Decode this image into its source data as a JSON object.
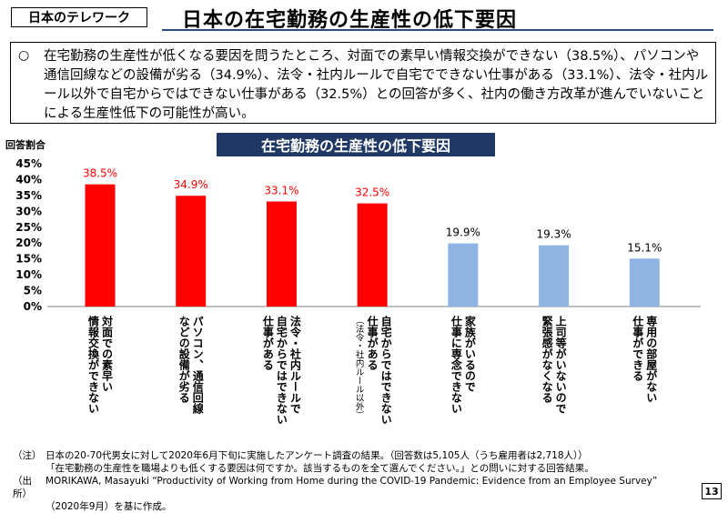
{
  "header": {
    "tag": "日本のテレワーク",
    "title": "日本の在宅勤務の生産性の低下要因"
  },
  "summary": {
    "bullet": "○",
    "text": "在宅勤務の生産性が低くなる要因を問うたところ、対面での素早い情報交換ができない（38.5%）、パソコンや通信回線などの設備が劣る（34.9%）、法令・社内ルールで自宅でできない仕事がある（33.1%）、法令・社内ルール以外で自宅からではできない仕事がある（32.5%）との回答が多く、社内の働き方改革が進んでいないことによる生産性低下の可能性が高い。"
  },
  "chart_data": {
    "type": "bar",
    "title": "在宅勤務の生産性の低下要因",
    "ylabel": "回答割合",
    "ylim": [
      0,
      45
    ],
    "yticks": [
      "0%",
      "5%",
      "10%",
      "15%",
      "20%",
      "25%",
      "30%",
      "35%",
      "40%",
      "45%"
    ],
    "grid": false,
    "values": [
      38.5,
      34.9,
      33.1,
      32.5,
      19.9,
      19.3,
      15.1
    ],
    "value_labels": [
      "38.5%",
      "34.9%",
      "33.1%",
      "32.5%",
      "19.9%",
      "19.3%",
      "15.1%"
    ],
    "categories": [
      {
        "lines": [
          "対面での素早い",
          "情報交換ができない"
        ],
        "note": ""
      },
      {
        "lines": [
          "パソコン、通信回線",
          "などの設備が劣る"
        ],
        "note": ""
      },
      {
        "lines": [
          "法令・社内ルールで",
          "自宅からではできない",
          "仕事がある"
        ],
        "note": ""
      },
      {
        "lines": [
          "自宅からではできない",
          "仕事がある"
        ],
        "note": "（法令・社内ルール以外）"
      },
      {
        "lines": [
          "家族がいるので",
          "仕事に専念できない"
        ],
        "note": ""
      },
      {
        "lines": [
          "上司等がいないので",
          "緊張感がなくなる"
        ],
        "note": ""
      },
      {
        "lines": [
          "専用の部屋がない",
          "仕事ができる"
        ],
        "note": ""
      }
    ],
    "colors": [
      "#ff0000",
      "#ff0000",
      "#ff0000",
      "#ff0000",
      "#8eb4e3",
      "#8eb4e3",
      "#8eb4e3"
    ],
    "label_colors": [
      "#ff0000",
      "#ff0000",
      "#ff0000",
      "#ff0000",
      "#000000",
      "#000000",
      "#000000"
    ]
  },
  "notes": {
    "note_label": "（注）",
    "note_line1": "日本の20-70代男女に対して2020年6月下旬に実施したアンケート調査の結果。（回答数は5,105人（うち雇用者は2,718人））",
    "note_line2": "「在宅勤務の生産性を職場よりも低くする要因は何ですか。該当するものを全て選んでください。」との問いに対する回答結果。",
    "source_label": "（出所）",
    "source_line1": "MORIKAWA, Masayuki “Productivity of Working from Home during the COVID-19 Pandemic: Evidence from an Employee Survey”",
    "source_line2": "（2020年9月）を基に作成。"
  },
  "page_number": "13"
}
